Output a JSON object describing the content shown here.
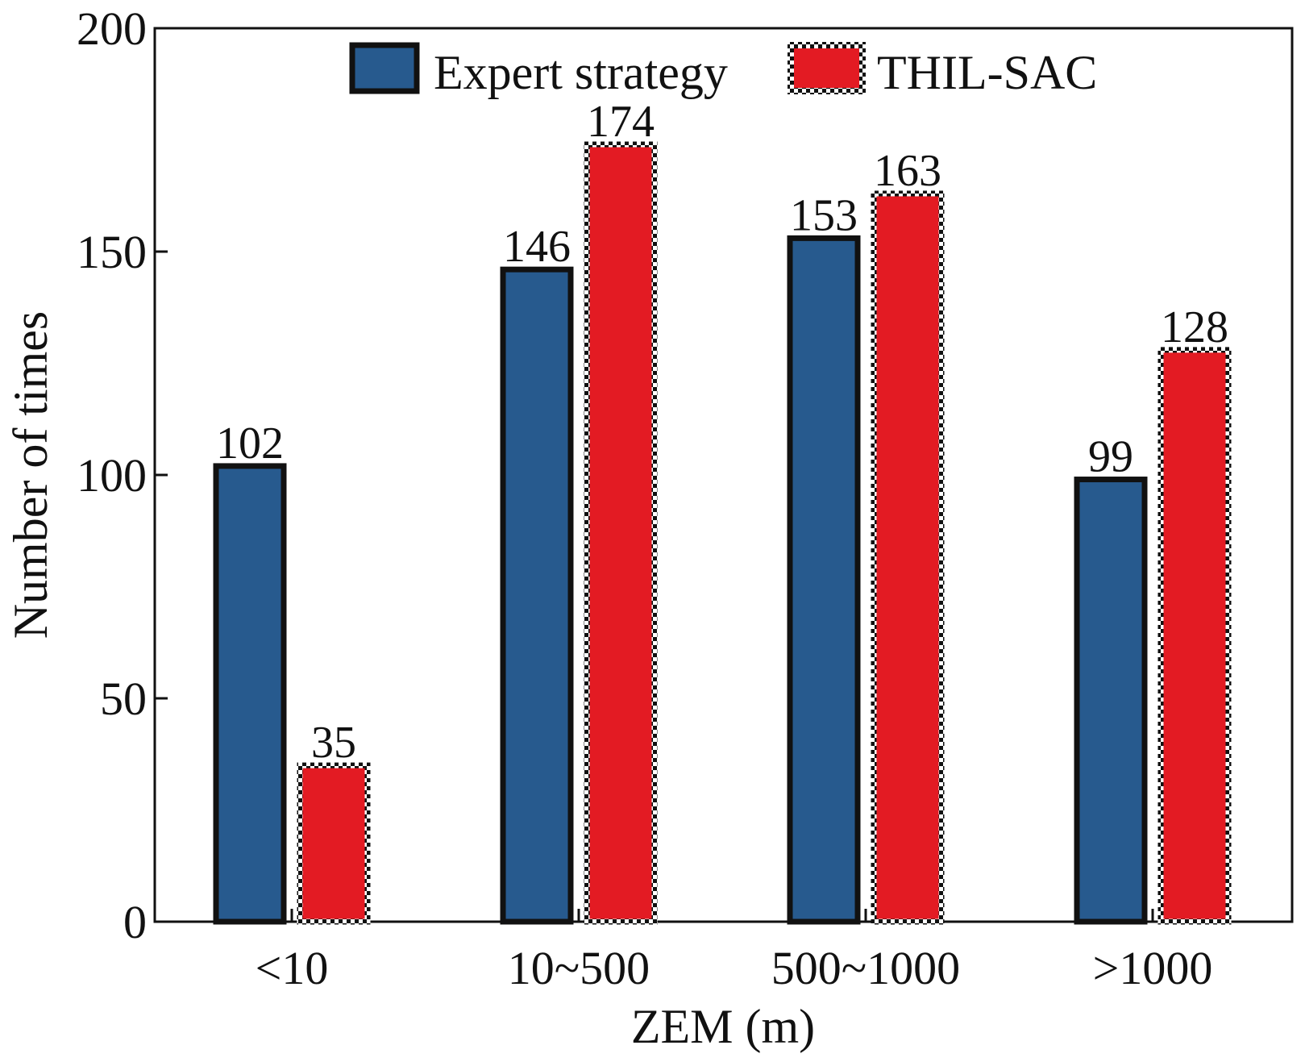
{
  "chart_data": {
    "type": "bar",
    "title": "",
    "xlabel": "ZEM (m)",
    "ylabel": "Number of times",
    "categories": [
      "<10",
      "10~500",
      "500~1000",
      ">1000"
    ],
    "series": [
      {
        "name": "Expert strategy",
        "values": [
          102,
          146,
          153,
          99
        ],
        "color": "#275a8e",
        "border": "solid"
      },
      {
        "name": "THIL-SAC",
        "values": [
          35,
          174,
          163,
          128
        ],
        "color": "#e31b23",
        "border": "dotted"
      }
    ],
    "ylim": [
      0,
      200
    ],
    "yticks": [
      0,
      50,
      100,
      150,
      200
    ],
    "grid": false,
    "legend_position": "top"
  }
}
